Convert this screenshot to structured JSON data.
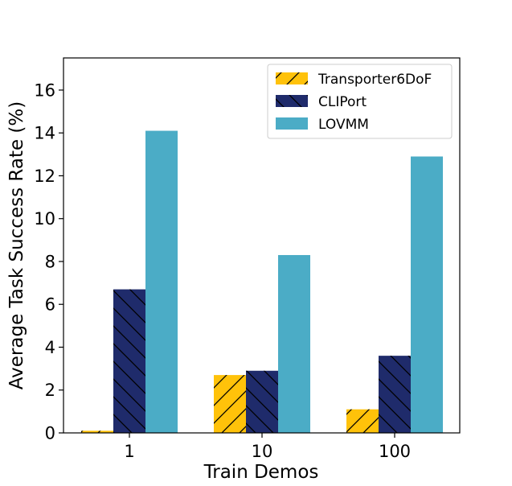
{
  "chart_data": {
    "type": "bar",
    "title": "",
    "xlabel": "Train Demos",
    "ylabel": "Average Task Success Rate (%)",
    "categories": [
      "1",
      "10",
      "100"
    ],
    "ylim": [
      0,
      17.5
    ],
    "yticks": [
      0,
      2,
      4,
      6,
      8,
      10,
      12,
      14,
      16
    ],
    "grid": false,
    "legend_position": "top-right",
    "series": [
      {
        "name": "Transporter6DoF",
        "values": [
          0.1,
          2.7,
          1.1
        ],
        "color": "#FFC20A",
        "hatch": "forward-diagonal"
      },
      {
        "name": "CLIPort",
        "values": [
          6.7,
          2.9,
          3.6
        ],
        "color": "#1F2B6B",
        "hatch": "back-diagonal"
      },
      {
        "name": "LOVMM",
        "values": [
          14.1,
          8.3,
          12.9
        ],
        "color": "#4BACC6",
        "hatch": "none"
      }
    ]
  }
}
